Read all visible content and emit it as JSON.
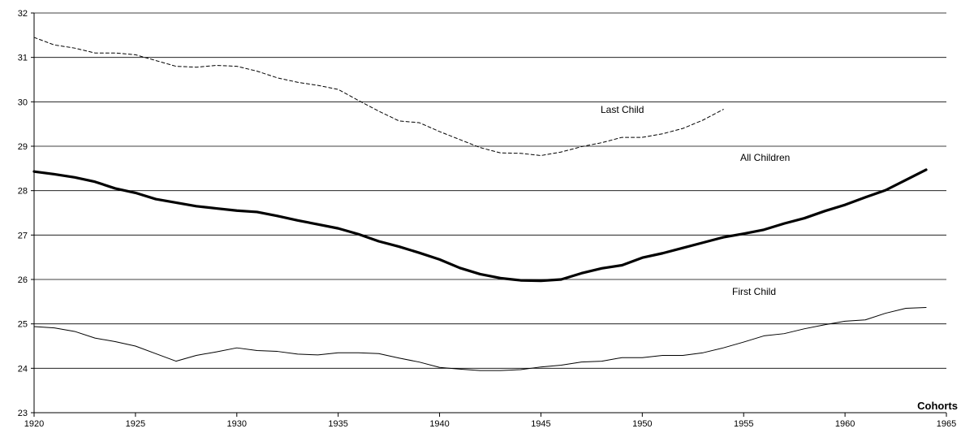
{
  "chart_data": {
    "type": "line",
    "xlabel": "Cohorts",
    "ylabel": "",
    "xlim": [
      1920,
      1965
    ],
    "ylim": [
      23,
      32
    ],
    "x_ticks": [
      1920,
      1925,
      1930,
      1935,
      1940,
      1945,
      1950,
      1955,
      1960,
      1965
    ],
    "y_ticks": [
      23,
      24,
      25,
      26,
      27,
      28,
      29,
      30,
      31,
      32
    ],
    "grid": "horizontal",
    "legend": "none",
    "series": [
      {
        "name": "Last Child",
        "style": "dashed",
        "stroke": "#000000",
        "x": [
          1920,
          1921,
          1922,
          1923,
          1924,
          1925,
          1926,
          1927,
          1928,
          1929,
          1930,
          1931,
          1932,
          1933,
          1934,
          1935,
          1936,
          1937,
          1938,
          1939,
          1940,
          1941,
          1942,
          1943,
          1944,
          1945,
          1946,
          1947,
          1948,
          1949,
          1950,
          1951,
          1952,
          1953,
          1954
        ],
        "values": [
          31.45,
          31.28,
          31.21,
          31.1,
          31.1,
          31.06,
          30.93,
          30.8,
          30.78,
          30.82,
          30.8,
          30.69,
          30.54,
          30.44,
          30.37,
          30.28,
          30.03,
          29.79,
          29.57,
          29.53,
          29.33,
          29.15,
          28.97,
          28.85,
          28.84,
          28.79,
          28.87,
          28.99,
          29.08,
          29.2,
          29.2,
          29.28,
          29.4,
          29.59,
          29.83
        ]
      },
      {
        "name": "All Children",
        "style": "thick",
        "stroke": "#000000",
        "x": [
          1920,
          1921,
          1922,
          1923,
          1924,
          1925,
          1926,
          1927,
          1928,
          1929,
          1930,
          1931,
          1932,
          1933,
          1934,
          1935,
          1936,
          1937,
          1938,
          1939,
          1940,
          1941,
          1942,
          1943,
          1944,
          1945,
          1946,
          1947,
          1948,
          1949,
          1950,
          1951,
          1952,
          1953,
          1954,
          1955,
          1956,
          1957,
          1958,
          1959,
          1960,
          1961,
          1962,
          1963,
          1964
        ],
        "values": [
          28.43,
          28.37,
          28.3,
          28.2,
          28.05,
          27.95,
          27.81,
          27.73,
          27.65,
          27.6,
          27.55,
          27.52,
          27.43,
          27.33,
          27.24,
          27.15,
          27.02,
          26.86,
          26.74,
          26.6,
          26.45,
          26.26,
          26.12,
          26.03,
          25.98,
          25.97,
          26.0,
          26.14,
          26.25,
          26.32,
          26.49,
          26.59,
          26.71,
          26.83,
          26.95,
          27.03,
          27.12,
          27.26,
          27.38,
          27.54,
          27.68,
          27.85,
          28.01,
          28.24,
          28.47
        ]
      },
      {
        "name": "First Child",
        "style": "thin",
        "stroke": "#000000",
        "x": [
          1920,
          1921,
          1922,
          1923,
          1924,
          1925,
          1926,
          1927,
          1928,
          1929,
          1930,
          1931,
          1932,
          1933,
          1934,
          1935,
          1936,
          1937,
          1938,
          1939,
          1940,
          1941,
          1942,
          1943,
          1944,
          1945,
          1946,
          1947,
          1948,
          1949,
          1950,
          1951,
          1952,
          1953,
          1954,
          1955,
          1956,
          1957,
          1958,
          1959,
          1960,
          1961,
          1962,
          1963,
          1964
        ],
        "values": [
          24.94,
          24.91,
          24.83,
          24.68,
          24.6,
          24.5,
          24.33,
          24.16,
          24.29,
          24.37,
          24.46,
          24.4,
          24.38,
          24.32,
          24.3,
          24.35,
          24.35,
          24.33,
          24.23,
          24.14,
          24.02,
          23.98,
          23.95,
          23.95,
          23.97,
          24.03,
          24.07,
          24.14,
          24.16,
          24.24,
          24.24,
          24.29,
          24.29,
          24.35,
          24.46,
          24.59,
          24.73,
          24.78,
          24.89,
          24.98,
          25.06,
          25.09,
          25.24,
          25.35,
          25.37
        ]
      }
    ]
  }
}
